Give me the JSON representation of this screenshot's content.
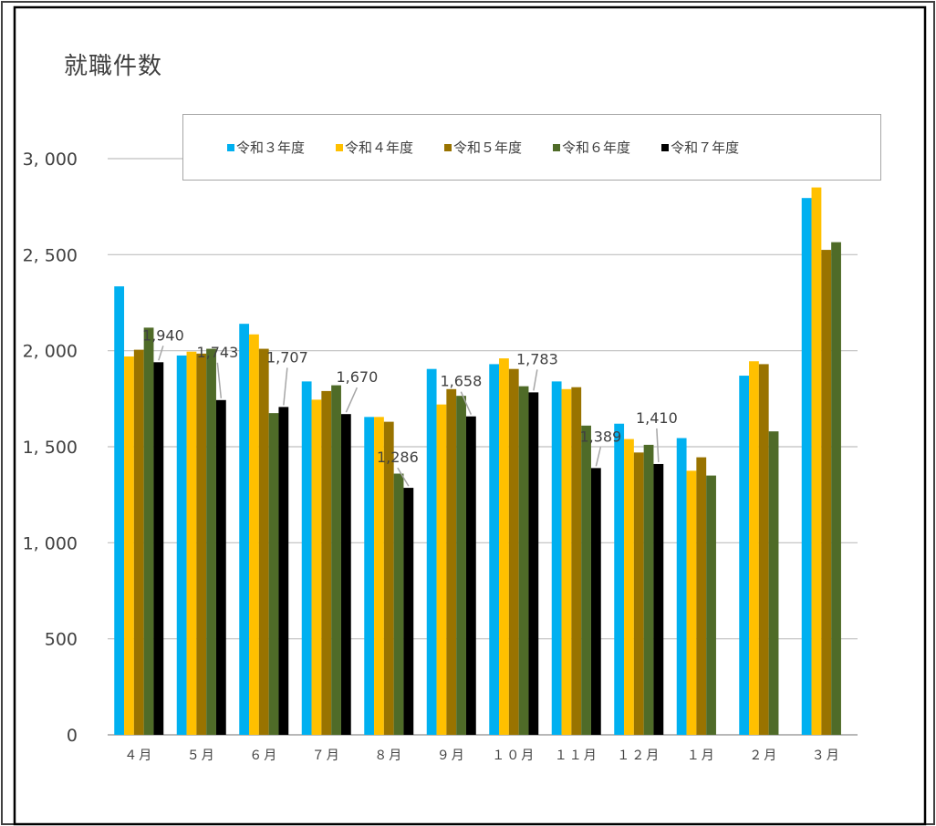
{
  "chart_data": {
    "type": "bar",
    "title": "就職件数",
    "categories": [
      "４月",
      "５月",
      "６月",
      "７月",
      "８月",
      "９月",
      "１０月",
      "１１月",
      "１２月",
      "１月",
      "２月",
      "３月"
    ],
    "y_tick_labels": [
      "0",
      "500",
      "1, 000",
      "1, 500",
      "2, 000",
      "2, 500",
      "3, 000"
    ],
    "ylim": [
      0,
      3000
    ],
    "grid": true,
    "legend_position": "top",
    "series": [
      {
        "name": "令和３年度",
        "color": "#00b0f0",
        "values": [
          2335,
          1975,
          2140,
          1840,
          1655,
          1905,
          1930,
          1840,
          1620,
          1545,
          1870,
          2795
        ]
      },
      {
        "name": "令和４年度",
        "color": "#ffc000",
        "values": [
          1970,
          1995,
          2085,
          1745,
          1655,
          1720,
          1960,
          1800,
          1540,
          1375,
          1945,
          2850
        ]
      },
      {
        "name": "令和５年度",
        "color": "#997300",
        "values": [
          2005,
          1985,
          2010,
          1790,
          1630,
          1800,
          1905,
          1810,
          1470,
          1445,
          1930,
          2525
        ]
      },
      {
        "name": "令和６年度",
        "color": "#4f6b28",
        "values": [
          2120,
          2010,
          1675,
          1820,
          1360,
          1765,
          1815,
          1610,
          1510,
          1350,
          1580,
          2565
        ]
      },
      {
        "name": "令和７年度",
        "color": "#000000",
        "values": [
          1940,
          1743,
          1707,
          1670,
          1286,
          1658,
          1783,
          1389,
          1410,
          null,
          null,
          null
        ]
      }
    ],
    "data_labels": [
      "1,940",
      "1,743",
      "1,707",
      "1,670",
      "1,286",
      "1,658",
      "1,783",
      "1,389",
      "1,410"
    ]
  }
}
